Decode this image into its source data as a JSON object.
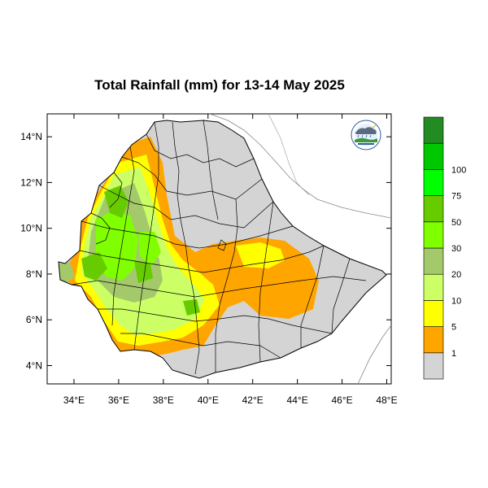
{
  "title": "Total Rainfall (mm) for 13-14 May 2025",
  "axes": {
    "x_ticks": [
      "34°E",
      "36°E",
      "38°E",
      "40°E",
      "42°E",
      "44°E",
      "46°E",
      "48°E"
    ],
    "y_ticks": [
      "14°N",
      "12°N",
      "10°N",
      "8°N",
      "6°N",
      "4°N"
    ],
    "x_range": [
      32.8,
      48.2
    ],
    "y_range": [
      3.2,
      15.0
    ]
  },
  "colorbar": {
    "labels": [
      "1",
      "5",
      "10",
      "20",
      "30",
      "50",
      "75",
      "100"
    ],
    "colors": [
      "#d4d4d4",
      "#ffa500",
      "#ffff00",
      "#ccff66",
      "#a3c96a",
      "#80ff00",
      "#66cc00",
      "#00ff00",
      "#00c800",
      "#228b22"
    ]
  },
  "logo": {
    "name": "ethiopian-meteorology-institute-logo"
  },
  "colors": {
    "land": "#d4d4d4",
    "border": "#000000",
    "background": "#ffffff"
  }
}
